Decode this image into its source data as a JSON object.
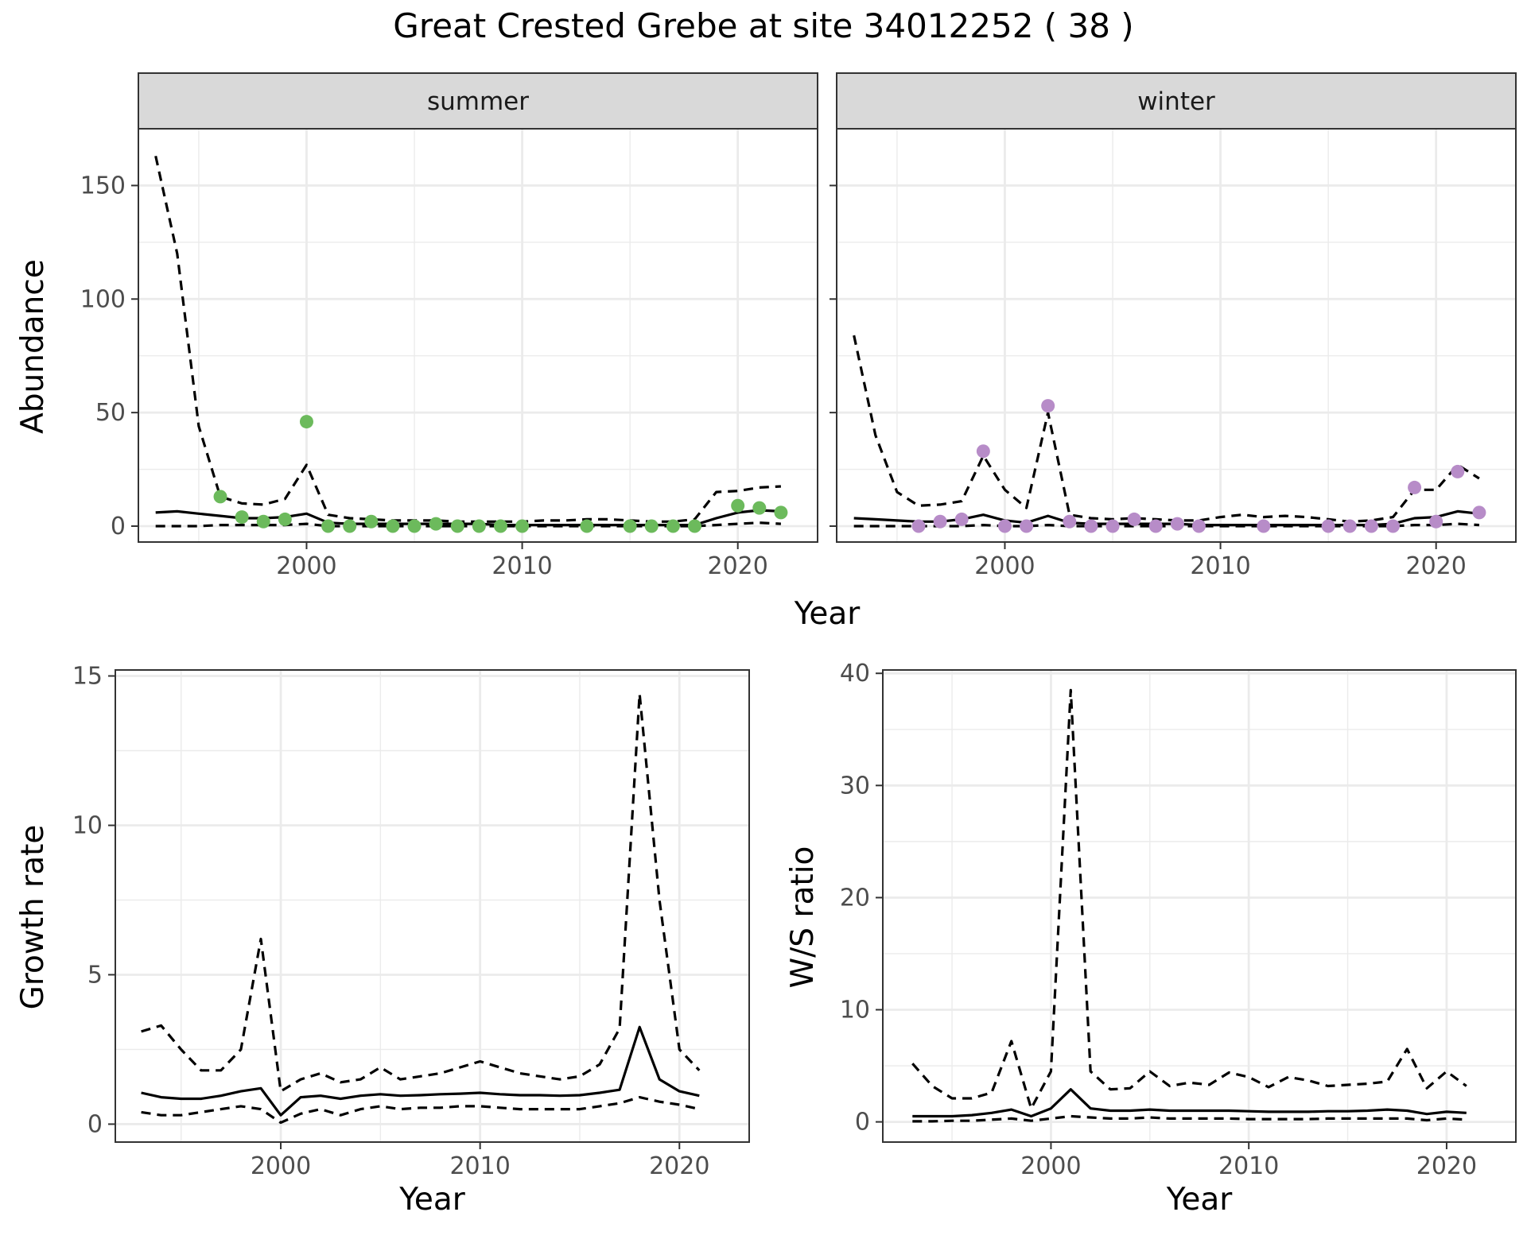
{
  "title": "Great Crested Grebe at site 34012252 ( 38 )",
  "colors": {
    "summer_points": "#6cba5c",
    "winter_points": "#b78cc8",
    "lines": "#000000",
    "strip_bg": "#d9d9d9",
    "grid": "#ebebeb"
  },
  "chart_data": [
    {
      "type": "line",
      "id": "abundance",
      "facet_label": "summer",
      "xlabel": "Year",
      "ylabel": "Abundance",
      "xlim": [
        1992.2,
        2023.7
      ],
      "ylim": [
        -7,
        175
      ],
      "xticks": [
        2000,
        2010,
        2020
      ],
      "yticks": [
        0,
        50,
        100,
        150
      ],
      "grid": true,
      "series": [
        {
          "role": "estimate",
          "style": "solid",
          "x": [
            1993,
            1994,
            1995,
            1996,
            1997,
            1998,
            1999,
            2000,
            2001,
            2002,
            2003,
            2004,
            2005,
            2006,
            2007,
            2008,
            2009,
            2010,
            2011,
            2012,
            2013,
            2014,
            2015,
            2016,
            2017,
            2018,
            2019,
            2020,
            2021,
            2022
          ],
          "y": [
            6,
            6.5,
            5.5,
            4.5,
            3.5,
            3.5,
            4,
            5.5,
            1.5,
            1,
            1,
            1,
            1,
            1,
            1,
            1,
            0.5,
            0.5,
            0.5,
            0.5,
            0.5,
            0.5,
            0.5,
            0.5,
            0.5,
            0.5,
            3.5,
            6,
            7,
            6.5
          ]
        },
        {
          "role": "upper",
          "style": "dashed",
          "x": [
            1993,
            1994,
            1995,
            1996,
            1997,
            1998,
            1999,
            2000,
            2001,
            2002,
            2003,
            2004,
            2005,
            2006,
            2007,
            2008,
            2009,
            2010,
            2011,
            2012,
            2013,
            2014,
            2015,
            2016,
            2017,
            2018,
            2019,
            2020,
            2021,
            2022
          ],
          "y": [
            163,
            120,
            44,
            13,
            10,
            9.5,
            12,
            27,
            5,
            3.5,
            3,
            2.5,
            2.5,
            2.5,
            2,
            2,
            2,
            2,
            2.5,
            2.5,
            3,
            3,
            2.5,
            2,
            2,
            3,
            15,
            15.5,
            17,
            17.5
          ]
        },
        {
          "role": "lower",
          "style": "dashed",
          "x": [
            1993,
            1994,
            1995,
            1996,
            1997,
            1998,
            1999,
            2000,
            2001,
            2002,
            2003,
            2004,
            2005,
            2006,
            2007,
            2008,
            2009,
            2010,
            2011,
            2012,
            2013,
            2014,
            2015,
            2016,
            2017,
            2018,
            2019,
            2020,
            2021,
            2022
          ],
          "y": [
            0,
            0,
            0,
            0.5,
            0.5,
            0.5,
            0.5,
            1,
            0,
            0,
            0,
            0,
            0,
            0,
            0,
            0,
            0,
            0,
            0,
            0,
            0,
            0,
            0,
            0,
            0,
            0,
            0.5,
            1,
            1.5,
            1
          ]
        }
      ],
      "points": {
        "x": [
          1996,
          1997,
          1998,
          1999,
          2000,
          2001,
          2002,
          2003,
          2004,
          2005,
          2006,
          2007,
          2008,
          2009,
          2010,
          2013,
          2015,
          2016,
          2017,
          2018,
          2020,
          2021,
          2022
        ],
        "y": [
          13,
          4,
          2,
          3,
          46,
          0,
          0,
          2,
          0,
          0,
          1,
          0,
          0,
          0,
          0,
          0,
          0,
          0,
          0,
          0,
          9,
          8,
          6
        ]
      }
    },
    {
      "type": "line",
      "id": "abundance",
      "facet_label": "winter",
      "xlabel": "Year",
      "ylabel": "",
      "xlim": [
        1992.2,
        2023.7
      ],
      "ylim": [
        -7,
        175
      ],
      "xticks": [
        2000,
        2010,
        2020
      ],
      "yticks": [
        0,
        50,
        100,
        150
      ],
      "grid": true,
      "series": [
        {
          "role": "estimate",
          "style": "solid",
          "x": [
            1993,
            1994,
            1995,
            1996,
            1997,
            1998,
            1999,
            2000,
            2001,
            2002,
            2003,
            2004,
            2005,
            2006,
            2007,
            2008,
            2009,
            2010,
            2011,
            2012,
            2013,
            2014,
            2015,
            2016,
            2017,
            2018,
            2019,
            2020,
            2021,
            2022
          ],
          "y": [
            3.5,
            3,
            2.5,
            2,
            2,
            3,
            5,
            2.5,
            1.5,
            4.5,
            1.5,
            1,
            1,
            1,
            1,
            1,
            0.5,
            0.5,
            0.5,
            0.5,
            0.5,
            0.5,
            0.5,
            0.5,
            0.5,
            1,
            3.5,
            4,
            6.5,
            5.5
          ]
        },
        {
          "role": "upper",
          "style": "dashed",
          "x": [
            1993,
            1994,
            1995,
            1996,
            1997,
            1998,
            1999,
            2000,
            2001,
            2002,
            2003,
            2004,
            2005,
            2006,
            2007,
            2008,
            2009,
            2010,
            2011,
            2012,
            2013,
            2014,
            2015,
            2016,
            2017,
            2018,
            2019,
            2020,
            2021,
            2022
          ],
          "y": [
            84,
            40,
            15,
            9,
            9.5,
            11,
            31,
            16,
            8,
            50,
            5,
            3.5,
            3,
            3.5,
            3,
            2.5,
            2.5,
            4,
            5,
            4,
            4.5,
            4,
            3,
            2,
            2.5,
            4,
            16,
            16,
            27,
            21
          ]
        },
        {
          "role": "lower",
          "style": "dashed",
          "x": [
            1993,
            1994,
            1995,
            1996,
            1997,
            1998,
            1999,
            2000,
            2001,
            2002,
            2003,
            2004,
            2005,
            2006,
            2007,
            2008,
            2009,
            2010,
            2011,
            2012,
            2013,
            2014,
            2015,
            2016,
            2017,
            2018,
            2019,
            2020,
            2021,
            2022
          ],
          "y": [
            0,
            0,
            0,
            0,
            0,
            0,
            0.5,
            0,
            0,
            0.5,
            0,
            0,
            0,
            0,
            0,
            0,
            0,
            0,
            0,
            0,
            0,
            0,
            0,
            0,
            0,
            0,
            0.5,
            0.5,
            1,
            0.5
          ]
        }
      ],
      "points": {
        "x": [
          1996,
          1997,
          1998,
          1999,
          2000,
          2001,
          2002,
          2003,
          2004,
          2005,
          2006,
          2007,
          2008,
          2009,
          2012,
          2015,
          2016,
          2017,
          2018,
          2019,
          2020,
          2021,
          2022
        ],
        "y": [
          0,
          2,
          3,
          33,
          0,
          0,
          53,
          2,
          0,
          0,
          3,
          0,
          1,
          0,
          0,
          0,
          0,
          0,
          0,
          17,
          2,
          24,
          6
        ]
      }
    },
    {
      "type": "line",
      "id": "growth",
      "xlabel": "Year",
      "ylabel": "Growth rate",
      "xlim": [
        1991.7,
        2023.5
      ],
      "ylim": [
        -0.6,
        15.2
      ],
      "xticks": [
        2000,
        2010,
        2020
      ],
      "yticks": [
        0,
        5,
        10,
        15
      ],
      "grid": true,
      "series": [
        {
          "role": "estimate",
          "style": "solid",
          "x": [
            1993,
            1994,
            1995,
            1996,
            1997,
            1998,
            1999,
            2000,
            2001,
            2002,
            2003,
            2004,
            2005,
            2006,
            2007,
            2008,
            2009,
            2010,
            2011,
            2012,
            2013,
            2014,
            2015,
            2016,
            2017,
            2018,
            2019,
            2020,
            2021
          ],
          "y": [
            1.05,
            0.9,
            0.85,
            0.85,
            0.95,
            1.1,
            1.2,
            0.3,
            0.9,
            0.95,
            0.85,
            0.95,
            1.0,
            0.95,
            0.97,
            1.0,
            1.02,
            1.05,
            1.0,
            0.97,
            0.97,
            0.95,
            0.97,
            1.05,
            1.15,
            3.25,
            1.5,
            1.1,
            0.95
          ]
        },
        {
          "role": "upper",
          "style": "dashed",
          "x": [
            1993,
            1994,
            1995,
            1996,
            1997,
            1998,
            1999,
            2000,
            2001,
            2002,
            2003,
            2004,
            2005,
            2006,
            2007,
            2008,
            2009,
            2010,
            2011,
            2012,
            2013,
            2014,
            2015,
            2016,
            2017,
            2018,
            2019,
            2020,
            2021
          ],
          "y": [
            3.1,
            3.3,
            2.5,
            1.8,
            1.8,
            2.5,
            6.2,
            1.1,
            1.5,
            1.7,
            1.4,
            1.5,
            1.9,
            1.5,
            1.6,
            1.7,
            1.9,
            2.1,
            1.9,
            1.7,
            1.6,
            1.5,
            1.6,
            2.0,
            3.2,
            14.4,
            7.5,
            2.5,
            1.8
          ]
        },
        {
          "role": "lower",
          "style": "dashed",
          "x": [
            1993,
            1994,
            1995,
            1996,
            1997,
            1998,
            1999,
            2000,
            2001,
            2002,
            2003,
            2004,
            2005,
            2006,
            2007,
            2008,
            2009,
            2010,
            2011,
            2012,
            2013,
            2014,
            2015,
            2016,
            2017,
            2018,
            2019,
            2020,
            2021
          ],
          "y": [
            0.4,
            0.3,
            0.3,
            0.4,
            0.5,
            0.6,
            0.5,
            0.05,
            0.35,
            0.5,
            0.3,
            0.5,
            0.6,
            0.5,
            0.55,
            0.55,
            0.6,
            0.6,
            0.55,
            0.5,
            0.5,
            0.5,
            0.5,
            0.6,
            0.7,
            0.9,
            0.75,
            0.65,
            0.5
          ]
        }
      ]
    },
    {
      "type": "line",
      "id": "wsratio",
      "xlabel": "Year",
      "ylabel": "W/S ratio",
      "xlim": [
        1991.5,
        2023.5
      ],
      "ylim": [
        -1.8,
        40.3
      ],
      "xticks": [
        2000,
        2010,
        2020
      ],
      "yticks": [
        0,
        10,
        20,
        30,
        40
      ],
      "grid": true,
      "series": [
        {
          "role": "estimate",
          "style": "solid",
          "x": [
            1993,
            1994,
            1995,
            1996,
            1997,
            1998,
            1999,
            2000,
            2001,
            2002,
            2003,
            2004,
            2005,
            2006,
            2007,
            2008,
            2009,
            2010,
            2011,
            2012,
            2013,
            2014,
            2015,
            2016,
            2017,
            2018,
            2019,
            2020,
            2021
          ],
          "y": [
            0.5,
            0.5,
            0.5,
            0.6,
            0.8,
            1.1,
            0.5,
            1.2,
            2.9,
            1.2,
            1.0,
            1.0,
            1.1,
            1.0,
            1.0,
            1.0,
            1.0,
            0.95,
            0.9,
            0.9,
            0.9,
            0.95,
            0.95,
            1.0,
            1.1,
            1.0,
            0.7,
            0.9,
            0.8
          ]
        },
        {
          "role": "upper",
          "style": "dashed",
          "x": [
            1993,
            1994,
            1995,
            1996,
            1997,
            1998,
            1999,
            2000,
            2001,
            2002,
            2003,
            2004,
            2005,
            2006,
            2007,
            2008,
            2009,
            2010,
            2011,
            2012,
            2013,
            2014,
            2015,
            2016,
            2017,
            2018,
            2019,
            2020,
            2021
          ],
          "y": [
            5.2,
            3.2,
            2.1,
            2.1,
            2.6,
            7.2,
            1.2,
            4.5,
            38.5,
            4.5,
            2.9,
            3.0,
            4.5,
            3.2,
            3.5,
            3.3,
            4.4,
            4.0,
            3.1,
            4.0,
            3.7,
            3.2,
            3.3,
            3.4,
            3.6,
            6.5,
            3.0,
            4.5,
            3.2
          ]
        },
        {
          "role": "lower",
          "style": "dashed",
          "x": [
            1993,
            1994,
            1995,
            1996,
            1997,
            1998,
            1999,
            2000,
            2001,
            2002,
            2003,
            2004,
            2005,
            2006,
            2007,
            2008,
            2009,
            2010,
            2011,
            2012,
            2013,
            2014,
            2015,
            2016,
            2017,
            2018,
            2019,
            2020,
            2021
          ],
          "y": [
            0.05,
            0.05,
            0.1,
            0.1,
            0.2,
            0.3,
            0.1,
            0.3,
            0.5,
            0.4,
            0.3,
            0.3,
            0.4,
            0.3,
            0.3,
            0.3,
            0.3,
            0.25,
            0.25,
            0.25,
            0.25,
            0.3,
            0.3,
            0.3,
            0.3,
            0.3,
            0.15,
            0.3,
            0.2
          ]
        }
      ]
    }
  ]
}
